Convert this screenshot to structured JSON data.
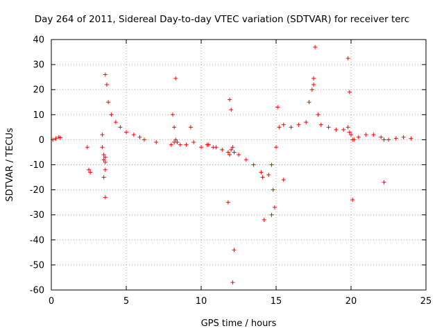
{
  "chart_data": {
    "type": "scatter",
    "title": "Day 264 of 2011, Sidereal Day-to-day VTEC variation (SDTVAR) for receiver terc",
    "xlabel": "GPS time / hours",
    "ylabel": "SDTVAR / TECUs",
    "xlim": [
      0,
      25
    ],
    "ylim": [
      -60,
      40
    ],
    "xticks": [
      0,
      5,
      10,
      15,
      20,
      25
    ],
    "yticks": [
      -60,
      -50,
      -40,
      -30,
      -20,
      -10,
      0,
      10,
      20,
      30,
      40
    ],
    "grid": true,
    "marker": "+",
    "color": "#ff0000",
    "series": [
      {
        "name": "SDTVAR",
        "x": [
          0.1,
          0.3,
          0.5,
          0.6,
          2.4,
          2.5,
          2.6,
          3.4,
          3.5,
          3.5,
          3.6,
          3.6,
          3.6,
          3.7,
          3.8,
          4.0,
          4.3,
          4.6,
          5.0,
          5.5,
          5.9,
          3.4,
          3.5,
          3.6,
          3.6,
          6.2,
          7.0,
          8.0,
          8.2,
          8.3,
          8.4,
          8.6,
          9.0,
          9.5,
          10.0,
          10.5,
          10.8,
          11.0,
          11.4,
          11.8,
          11.9,
          12.0,
          12.1,
          12.2,
          12.5,
          13.0,
          13.5,
          14.0,
          14.1,
          14.5,
          14.7,
          15.0,
          15.2,
          15.5,
          16.0,
          16.5,
          17.0,
          17.2,
          17.4,
          17.5,
          17.6,
          17.8,
          18.0,
          18.5,
          19.0,
          19.5,
          19.8,
          19.9,
          20.0,
          20.1,
          20.2,
          20.5,
          21.0,
          21.5,
          22.0,
          22.2,
          22.5,
          23.0,
          23.5,
          24.0,
          8.1,
          8.2,
          8.3,
          9.3,
          10.4,
          11.9,
          12.0,
          11.8,
          12.2,
          12.1,
          14.2,
          14.8,
          14.9,
          14.7,
          15.1,
          15.5,
          17.5,
          19.8,
          19.9,
          20.1,
          22.2
        ],
        "y": [
          0,
          0.5,
          1,
          0.8,
          -3,
          -12,
          -13,
          -3,
          -8,
          -15,
          -7,
          -23,
          26,
          22,
          15,
          10,
          7,
          5,
          3,
          2,
          1,
          2,
          -6,
          -9,
          -12,
          0,
          -1,
          -2,
          -1,
          0,
          -1,
          -2,
          -2,
          -1,
          -3,
          -2,
          -3,
          -3,
          -4,
          -5,
          -6,
          -4,
          -3,
          -5,
          -6,
          -8,
          -10,
          -13,
          -15,
          -14,
          -10,
          -3,
          5,
          6,
          5,
          6,
          7,
          15,
          20,
          22,
          37,
          10,
          6,
          5,
          4,
          4,
          5,
          3,
          2,
          0,
          0,
          1,
          2,
          2,
          1,
          0,
          0,
          0.5,
          1,
          0.5,
          10,
          5,
          24.5,
          5,
          -2,
          16,
          12,
          -25,
          -44,
          -57,
          -32,
          -20,
          -27,
          -30,
          13,
          -16,
          24.5,
          32.5,
          19,
          -24,
          -17
        ]
      }
    ]
  }
}
